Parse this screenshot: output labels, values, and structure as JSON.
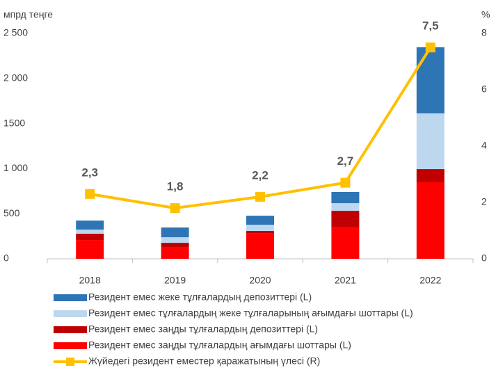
{
  "chart_data": {
    "type": "bar",
    "y_label": "мпрд теңге",
    "y2_label": "%",
    "categories": [
      "2018",
      "2019",
      "2020",
      "2021",
      "2022"
    ],
    "series": [
      {
        "name": "Резидент емес заңды тұлғалардың ағымдағы шоттары (L)",
        "color": "#ff0000",
        "values": [
          208,
          131,
          285,
          355,
          849
        ]
      },
      {
        "name": "Резидент емес заңды тұлғалардың депозиттері (L)",
        "color": "#c00000",
        "values": [
          70,
          46,
          24,
          177,
          146
        ]
      },
      {
        "name": "Резидент емес тұлғалардың жеке тұлғаларының ағымдағы шоттары (L)",
        "color": "#bdd7ee",
        "values": [
          46,
          62,
          69,
          85,
          618
        ]
      },
      {
        "name": "Резидент емес жеке тұлғалардың депозиттері (L)",
        "color": "#2e75b6",
        "values": [
          100,
          108,
          100,
          124,
          733
        ]
      },
      {
        "name": "Жүйедегі резидент еместер қаражатының үлесі (R)",
        "color": "#ffc000",
        "type": "line",
        "axis": "y2",
        "values": [
          2.3,
          1.8,
          2.2,
          2.7,
          7.5
        ],
        "value_labels": [
          "2,3",
          "1,8",
          "2,2",
          "2,7",
          "7,5"
        ]
      }
    ],
    "legend_order": [
      3,
      2,
      1,
      0,
      4
    ],
    "ylim": [
      0,
      2500
    ],
    "yticks": [
      0,
      500,
      {
        "value": 1000,
        "label": "1 000"
      },
      1500,
      {
        "value": 2000,
        "label": "2 000"
      },
      {
        "value": 2500,
        "label": "2 500"
      }
    ],
    "y2lim": [
      0,
      8
    ],
    "y2ticks": [
      0,
      2,
      4,
      6,
      8
    ]
  }
}
